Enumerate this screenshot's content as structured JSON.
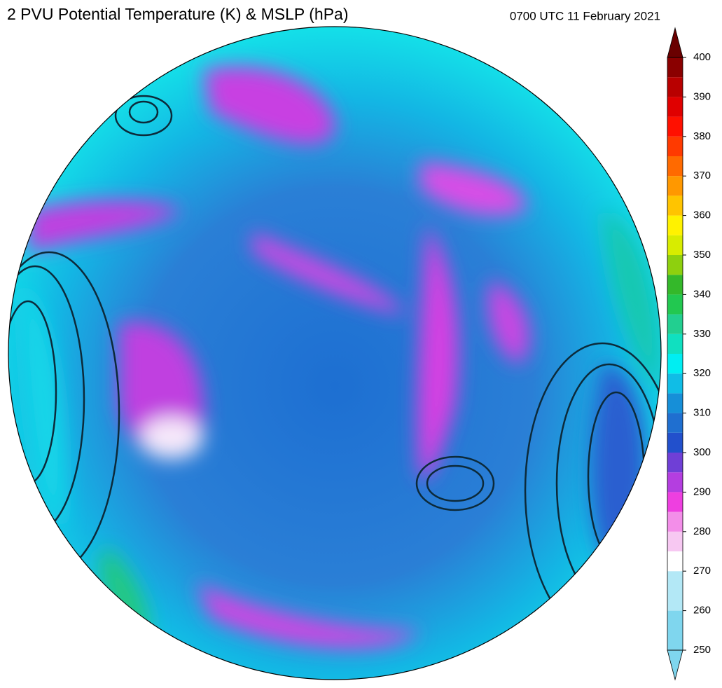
{
  "title": "2 PVU Potential Temperature (K) & MSLP (hPa)",
  "timestamp": "0700 UTC 11 February 2021",
  "colorbar": {
    "lim": [
      250,
      400
    ],
    "ticks": [
      250,
      260,
      270,
      280,
      290,
      300,
      310,
      320,
      330,
      340,
      350,
      360,
      370,
      380,
      390,
      400
    ],
    "stops": [
      {
        "value": 250,
        "color": "#7fd6ee"
      },
      {
        "value": 260,
        "color": "#b3e8f6"
      },
      {
        "value": 270,
        "color": "#ffffff"
      },
      {
        "value": 275,
        "color": "#f7c8f2"
      },
      {
        "value": 280,
        "color": "#f38ee9"
      },
      {
        "value": 285,
        "color": "#ee3fe0"
      },
      {
        "value": 290,
        "color": "#b43ee0"
      },
      {
        "value": 295,
        "color": "#6f3fd6"
      },
      {
        "value": 300,
        "color": "#2250cc"
      },
      {
        "value": 305,
        "color": "#1f6fd0"
      },
      {
        "value": 310,
        "color": "#168fd8"
      },
      {
        "value": 315,
        "color": "#10bde6"
      },
      {
        "value": 320,
        "color": "#00eef2"
      },
      {
        "value": 325,
        "color": "#10e0c0"
      },
      {
        "value": 330,
        "color": "#22cf90"
      },
      {
        "value": 335,
        "color": "#22c850"
      },
      {
        "value": 340,
        "color": "#34b82a"
      },
      {
        "value": 345,
        "color": "#8ed00e"
      },
      {
        "value": 350,
        "color": "#d8ec00"
      },
      {
        "value": 355,
        "color": "#fff200"
      },
      {
        "value": 360,
        "color": "#ffc400"
      },
      {
        "value": 365,
        "color": "#ff9800"
      },
      {
        "value": 370,
        "color": "#ff6a00"
      },
      {
        "value": 375,
        "color": "#ff3a00"
      },
      {
        "value": 380,
        "color": "#ff1000"
      },
      {
        "value": 385,
        "color": "#e00000"
      },
      {
        "value": 390,
        "color": "#b80000"
      },
      {
        "value": 395,
        "color": "#8a0000"
      }
    ],
    "under_color": "#7fd6ee",
    "over_color": "#6a0000"
  }
}
